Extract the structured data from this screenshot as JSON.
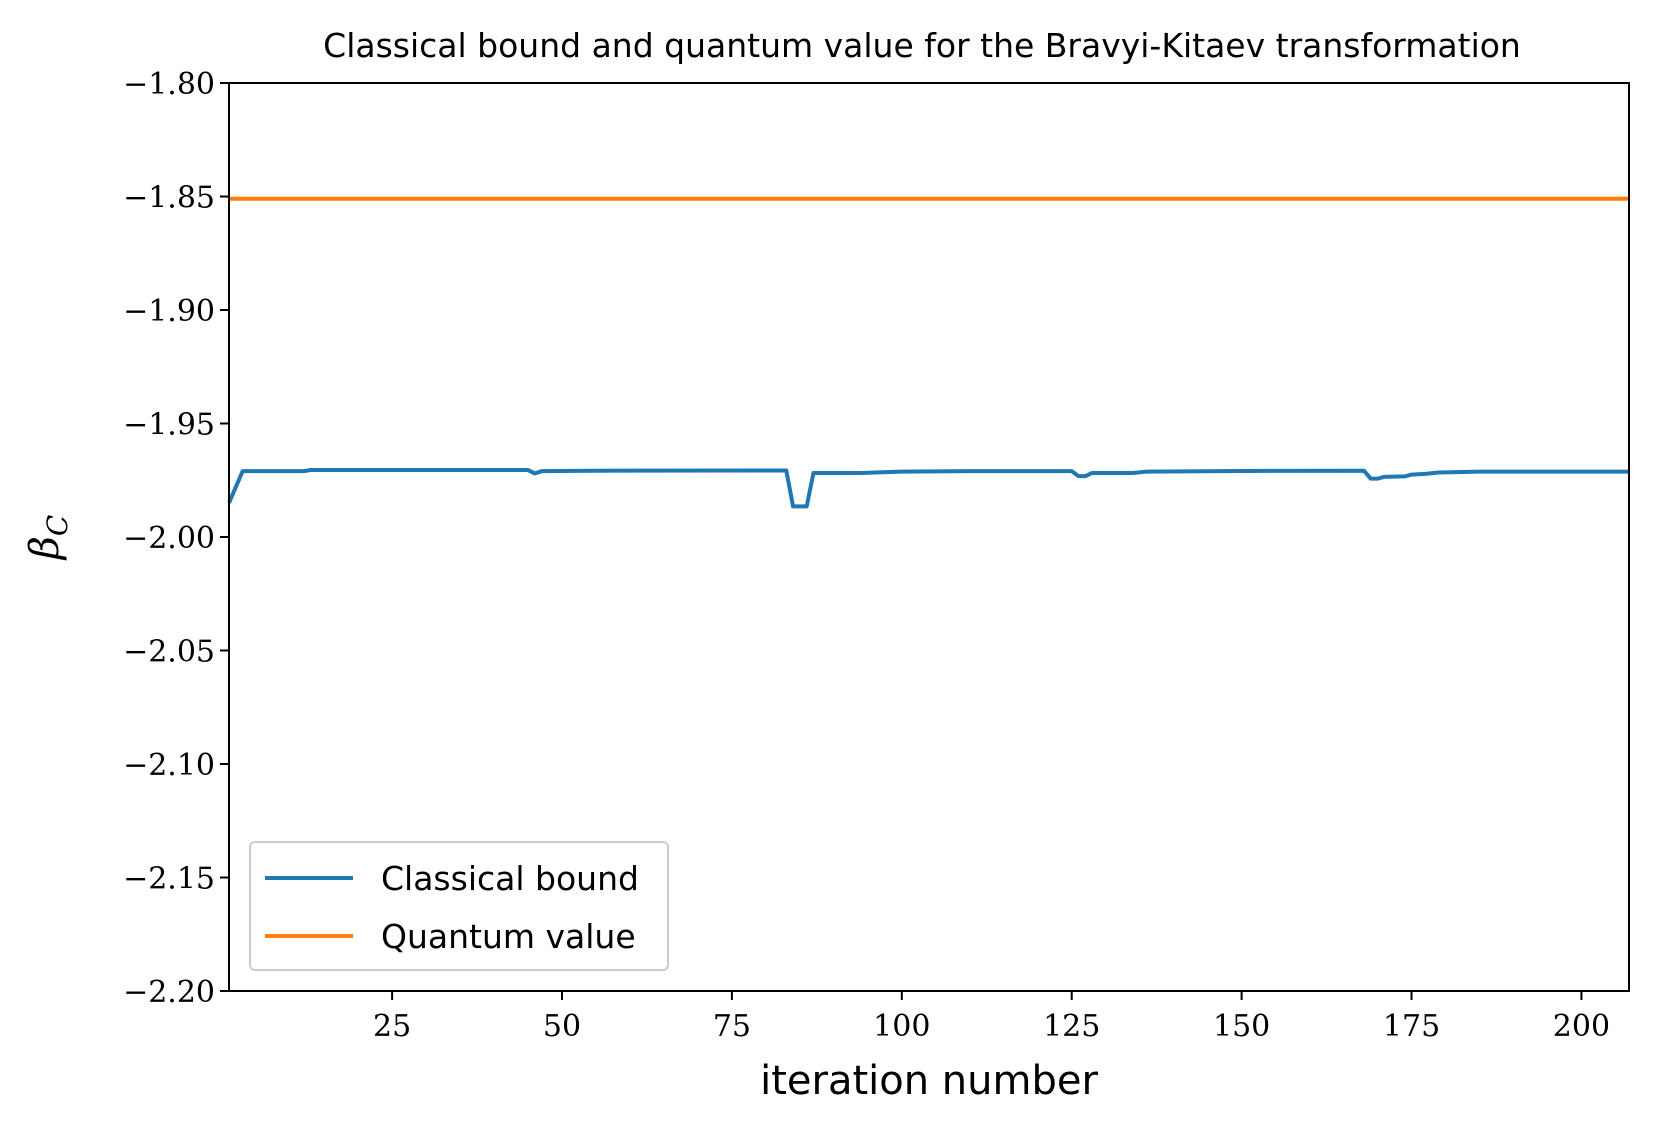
{
  "chart_data": {
    "type": "line",
    "title": "Classical bound and quantum value for the Bravyi-Kitaev transformation",
    "xlabel": "iteration number",
    "ylabel": "β",
    "ylabel_sub": "C",
    "xlim": [
      1,
      207
    ],
    "ylim": [
      -2.2,
      -1.8
    ],
    "x_ticks": [
      25,
      50,
      75,
      100,
      125,
      150,
      175,
      200
    ],
    "x_tick_labels": [
      "25",
      "50",
      "75",
      "100",
      "125",
      "150",
      "175",
      "200"
    ],
    "y_ticks": [
      -1.8,
      -1.85,
      -1.9,
      -1.95,
      -2.0,
      -2.05,
      -2.1,
      -2.15,
      -2.2
    ],
    "y_tick_labels": [
      "−1.80",
      "−1.85",
      "−1.90",
      "−1.95",
      "−2.00",
      "−2.05",
      "−2.10",
      "−2.15",
      "−2.20"
    ],
    "grid": false,
    "legend_position": "lower-left",
    "series": [
      {
        "name": "Classical bound",
        "color": "#1f77b4",
        "points": [
          [
            1,
            -1.985
          ],
          [
            2,
            -1.978
          ],
          [
            3,
            -1.971
          ],
          [
            12,
            -1.971
          ],
          [
            13,
            -1.9705
          ],
          [
            45,
            -1.9705
          ],
          [
            46,
            -1.972
          ],
          [
            47,
            -1.971
          ],
          [
            55,
            -1.9708
          ],
          [
            83,
            -1.9707
          ],
          [
            84,
            -1.9865
          ],
          [
            86,
            -1.9865
          ],
          [
            87,
            -1.9718
          ],
          [
            94,
            -1.9718
          ],
          [
            100,
            -1.9712
          ],
          [
            110,
            -1.971
          ],
          [
            125,
            -1.971
          ],
          [
            126,
            -1.9732
          ],
          [
            127,
            -1.9732
          ],
          [
            128,
            -1.9718
          ],
          [
            134,
            -1.9718
          ],
          [
            136,
            -1.9712
          ],
          [
            150,
            -1.9709
          ],
          [
            168,
            -1.9708
          ],
          [
            169,
            -1.9743
          ],
          [
            170,
            -1.9743
          ],
          [
            171,
            -1.9735
          ],
          [
            174,
            -1.9733
          ],
          [
            175,
            -1.9725
          ],
          [
            177,
            -1.9722
          ],
          [
            179,
            -1.9716
          ],
          [
            185,
            -1.9712
          ],
          [
            207,
            -1.9712
          ]
        ]
      },
      {
        "name": "Quantum value",
        "color": "#ff7f0e",
        "points": [
          [
            1,
            -1.851
          ],
          [
            207,
            -1.851
          ]
        ]
      }
    ]
  }
}
